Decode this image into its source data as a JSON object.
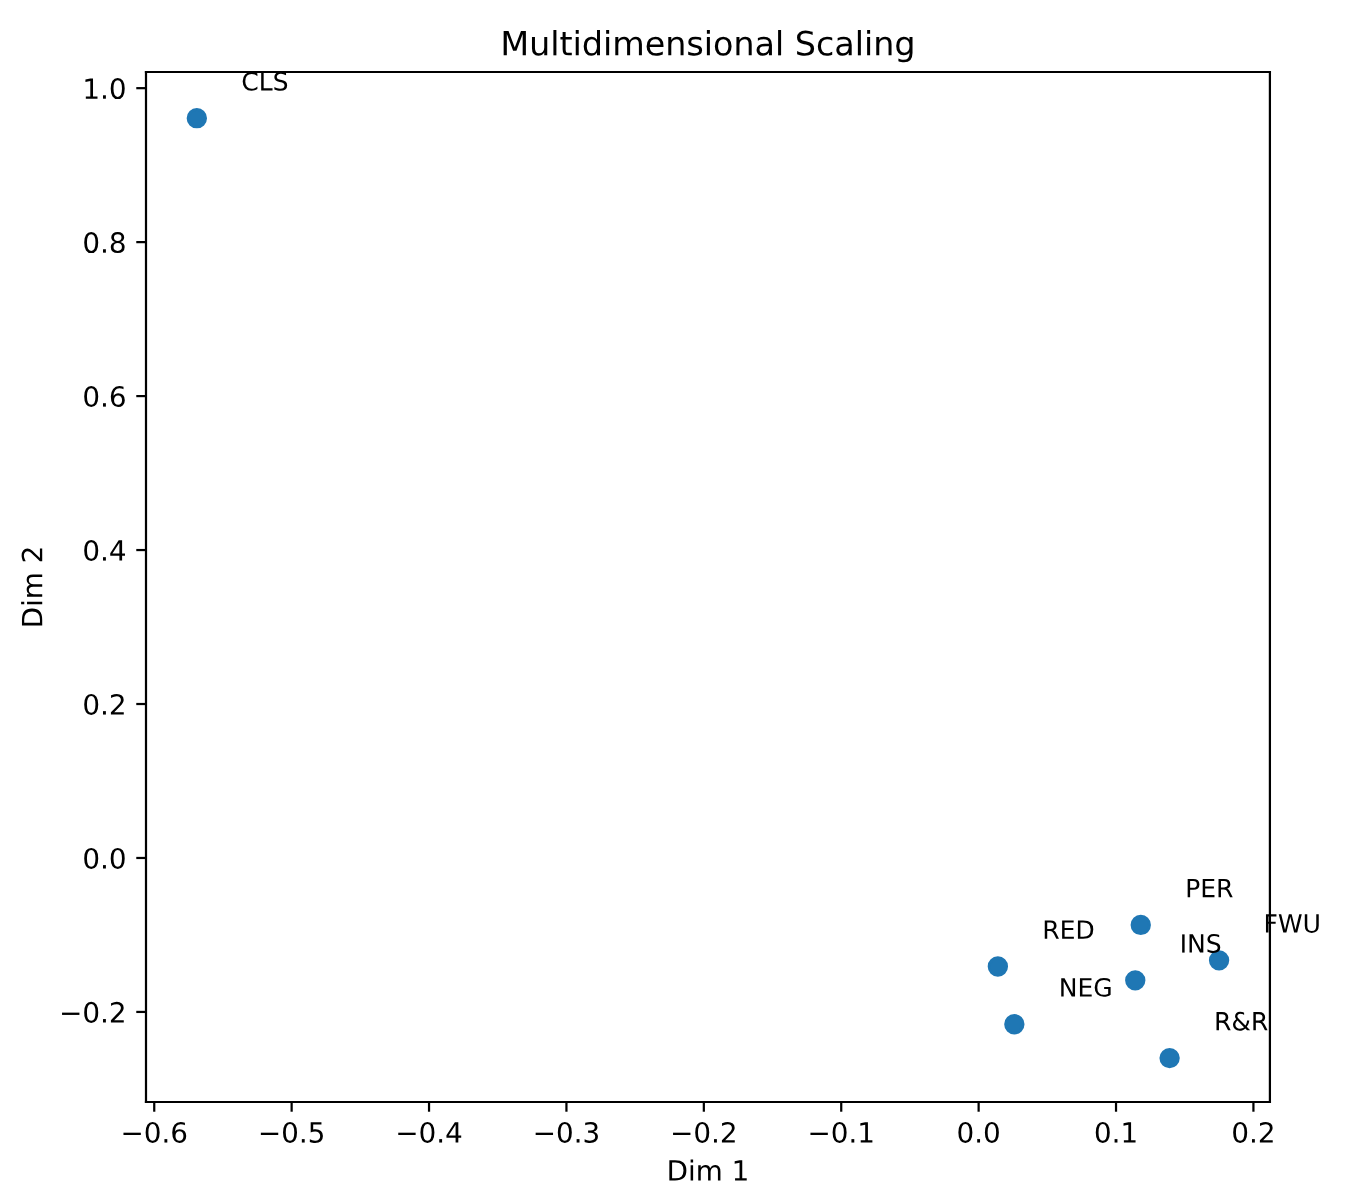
{
  "chart_data": {
    "type": "scatter",
    "title": "Multidimensional Scaling",
    "xlabel": "Dim 1",
    "ylabel": "Dim 2",
    "x": [
      -0.569,
      0.014,
      0.026,
      0.118,
      0.114,
      0.175,
      0.139
    ],
    "series": [
      {
        "color": "#1f77b4",
        "values": [
          0.961,
          -0.141,
          -0.216,
          -0.087,
          -0.159,
          -0.133,
          -0.26
        ]
      }
    ],
    "annotations": [
      {
        "text": "CLS",
        "x": -0.569,
        "y": 0.961
      },
      {
        "text": "RED",
        "x": 0.014,
        "y": -0.141
      },
      {
        "text": "NEG",
        "x": 0.026,
        "y": -0.216
      },
      {
        "text": "PER",
        "x": 0.118,
        "y": -0.087
      },
      {
        "text": "INS",
        "x": 0.114,
        "y": -0.159
      },
      {
        "text": "FWU",
        "x": 0.175,
        "y": -0.133
      },
      {
        "text": "R&R",
        "x": 0.139,
        "y": -0.26
      }
    ],
    "xlim": [
      -0.606,
      0.212
    ],
    "ylim": [
      -0.317,
      1.021
    ],
    "xticks": [
      {
        "value": -0.6,
        "label": "−0.6"
      },
      {
        "value": -0.5,
        "label": "−0.5"
      },
      {
        "value": -0.4,
        "label": "−0.4"
      },
      {
        "value": -0.3,
        "label": "−0.3"
      },
      {
        "value": -0.2,
        "label": "−0.2"
      },
      {
        "value": -0.1,
        "label": "−0.1"
      },
      {
        "value": 0.0,
        "label": "0.0"
      },
      {
        "value": 0.1,
        "label": "0.1"
      },
      {
        "value": 0.2,
        "label": "0.2"
      }
    ],
    "yticks": [
      {
        "value": -0.2,
        "label": "−0.2"
      },
      {
        "value": 0.0,
        "label": "0.0"
      },
      {
        "value": 0.2,
        "label": "0.2"
      },
      {
        "value": 0.4,
        "label": "0.4"
      },
      {
        "value": 0.6,
        "label": "0.6"
      },
      {
        "value": 0.8,
        "label": "0.8"
      },
      {
        "value": 1.0,
        "label": "1.0"
      }
    ],
    "marker": "circle",
    "grid": false,
    "legend": false
  }
}
